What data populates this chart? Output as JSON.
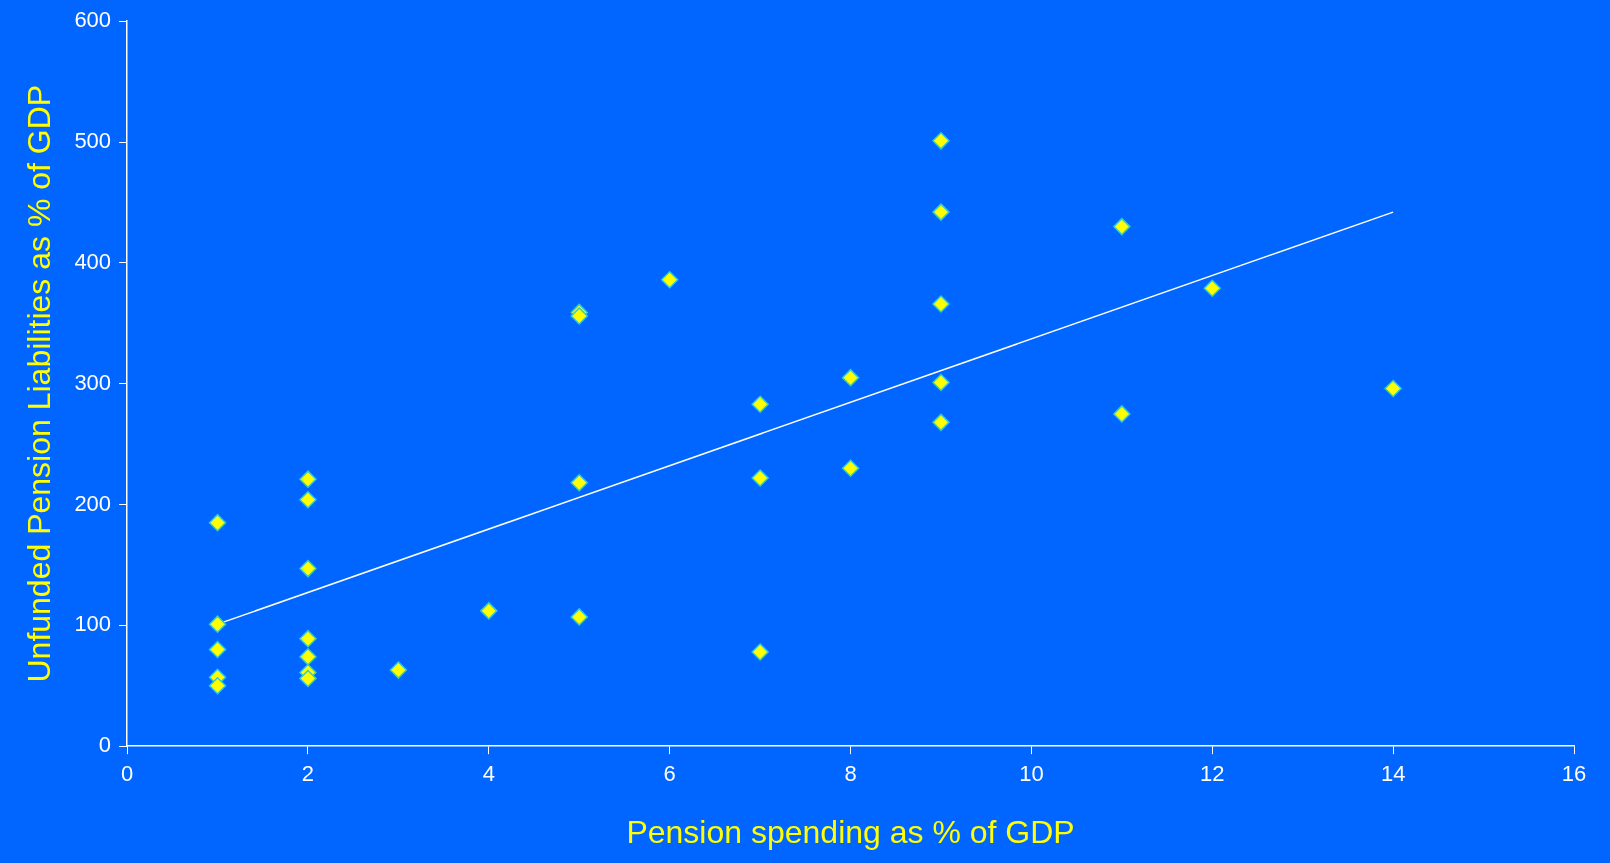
{
  "chart_data": {
    "type": "scatter",
    "xlabel": "Pension spending as % of GDP",
    "ylabel": "Unfunded Pension Liabilities as % of GDP",
    "xlim": [
      0,
      16
    ],
    "xticks": [
      0,
      2,
      4,
      6,
      8,
      10,
      12,
      14,
      16
    ],
    "ylim": [
      0,
      600
    ],
    "yticks": [
      0,
      100,
      200,
      300,
      400,
      500,
      600
    ],
    "grid": false,
    "legend": false,
    "marker": "diamond",
    "series": [
      {
        "type": "scatter",
        "color": "#ffff00",
        "x": [
          1,
          1,
          1,
          1,
          1,
          2,
          2,
          2,
          2,
          2,
          2,
          2,
          3,
          4,
          5,
          5,
          5,
          5,
          6,
          7,
          7,
          7,
          8,
          8,
          9,
          9,
          9,
          9,
          9,
          11,
          11,
          12,
          14
        ],
        "values": [
          185,
          101,
          80,
          57,
          50,
          221,
          204,
          147,
          89,
          74,
          61,
          56,
          63,
          112,
          359,
          356,
          218,
          107,
          386,
          283,
          222,
          78,
          305,
          230,
          501,
          442,
          366,
          301,
          268,
          430,
          275,
          379,
          296
        ]
      },
      {
        "type": "line",
        "color": "#ffffff",
        "marker": "none",
        "x": [
          1,
          14
        ],
        "values": [
          101,
          442
        ]
      }
    ]
  }
}
